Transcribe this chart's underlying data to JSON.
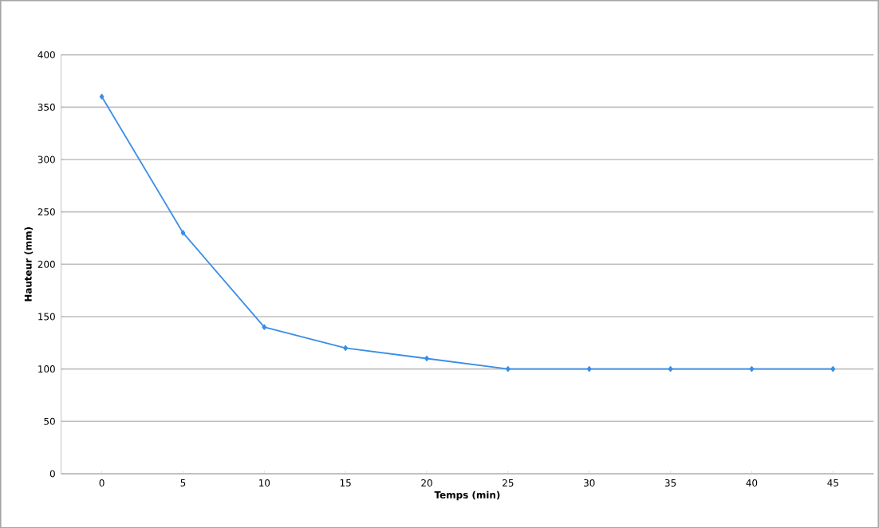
{
  "chart_data": {
    "type": "line",
    "xlabel": "Temps (min)",
    "ylabel": "Hauteur (mm)",
    "categories": [
      "0",
      "5",
      "10",
      "15",
      "20",
      "25",
      "30",
      "35",
      "40",
      "45"
    ],
    "series": [
      {
        "color": "#3a8ee6",
        "values": [
          360,
          230,
          140,
          120,
          110,
          100,
          100,
          100,
          100,
          100
        ]
      }
    ],
    "ylim": [
      0,
      400
    ],
    "yticks": [
      0,
      50,
      100,
      150,
      200,
      250,
      300,
      350,
      400
    ],
    "grid": "y",
    "marker": "diamond",
    "line_style": "solid"
  }
}
